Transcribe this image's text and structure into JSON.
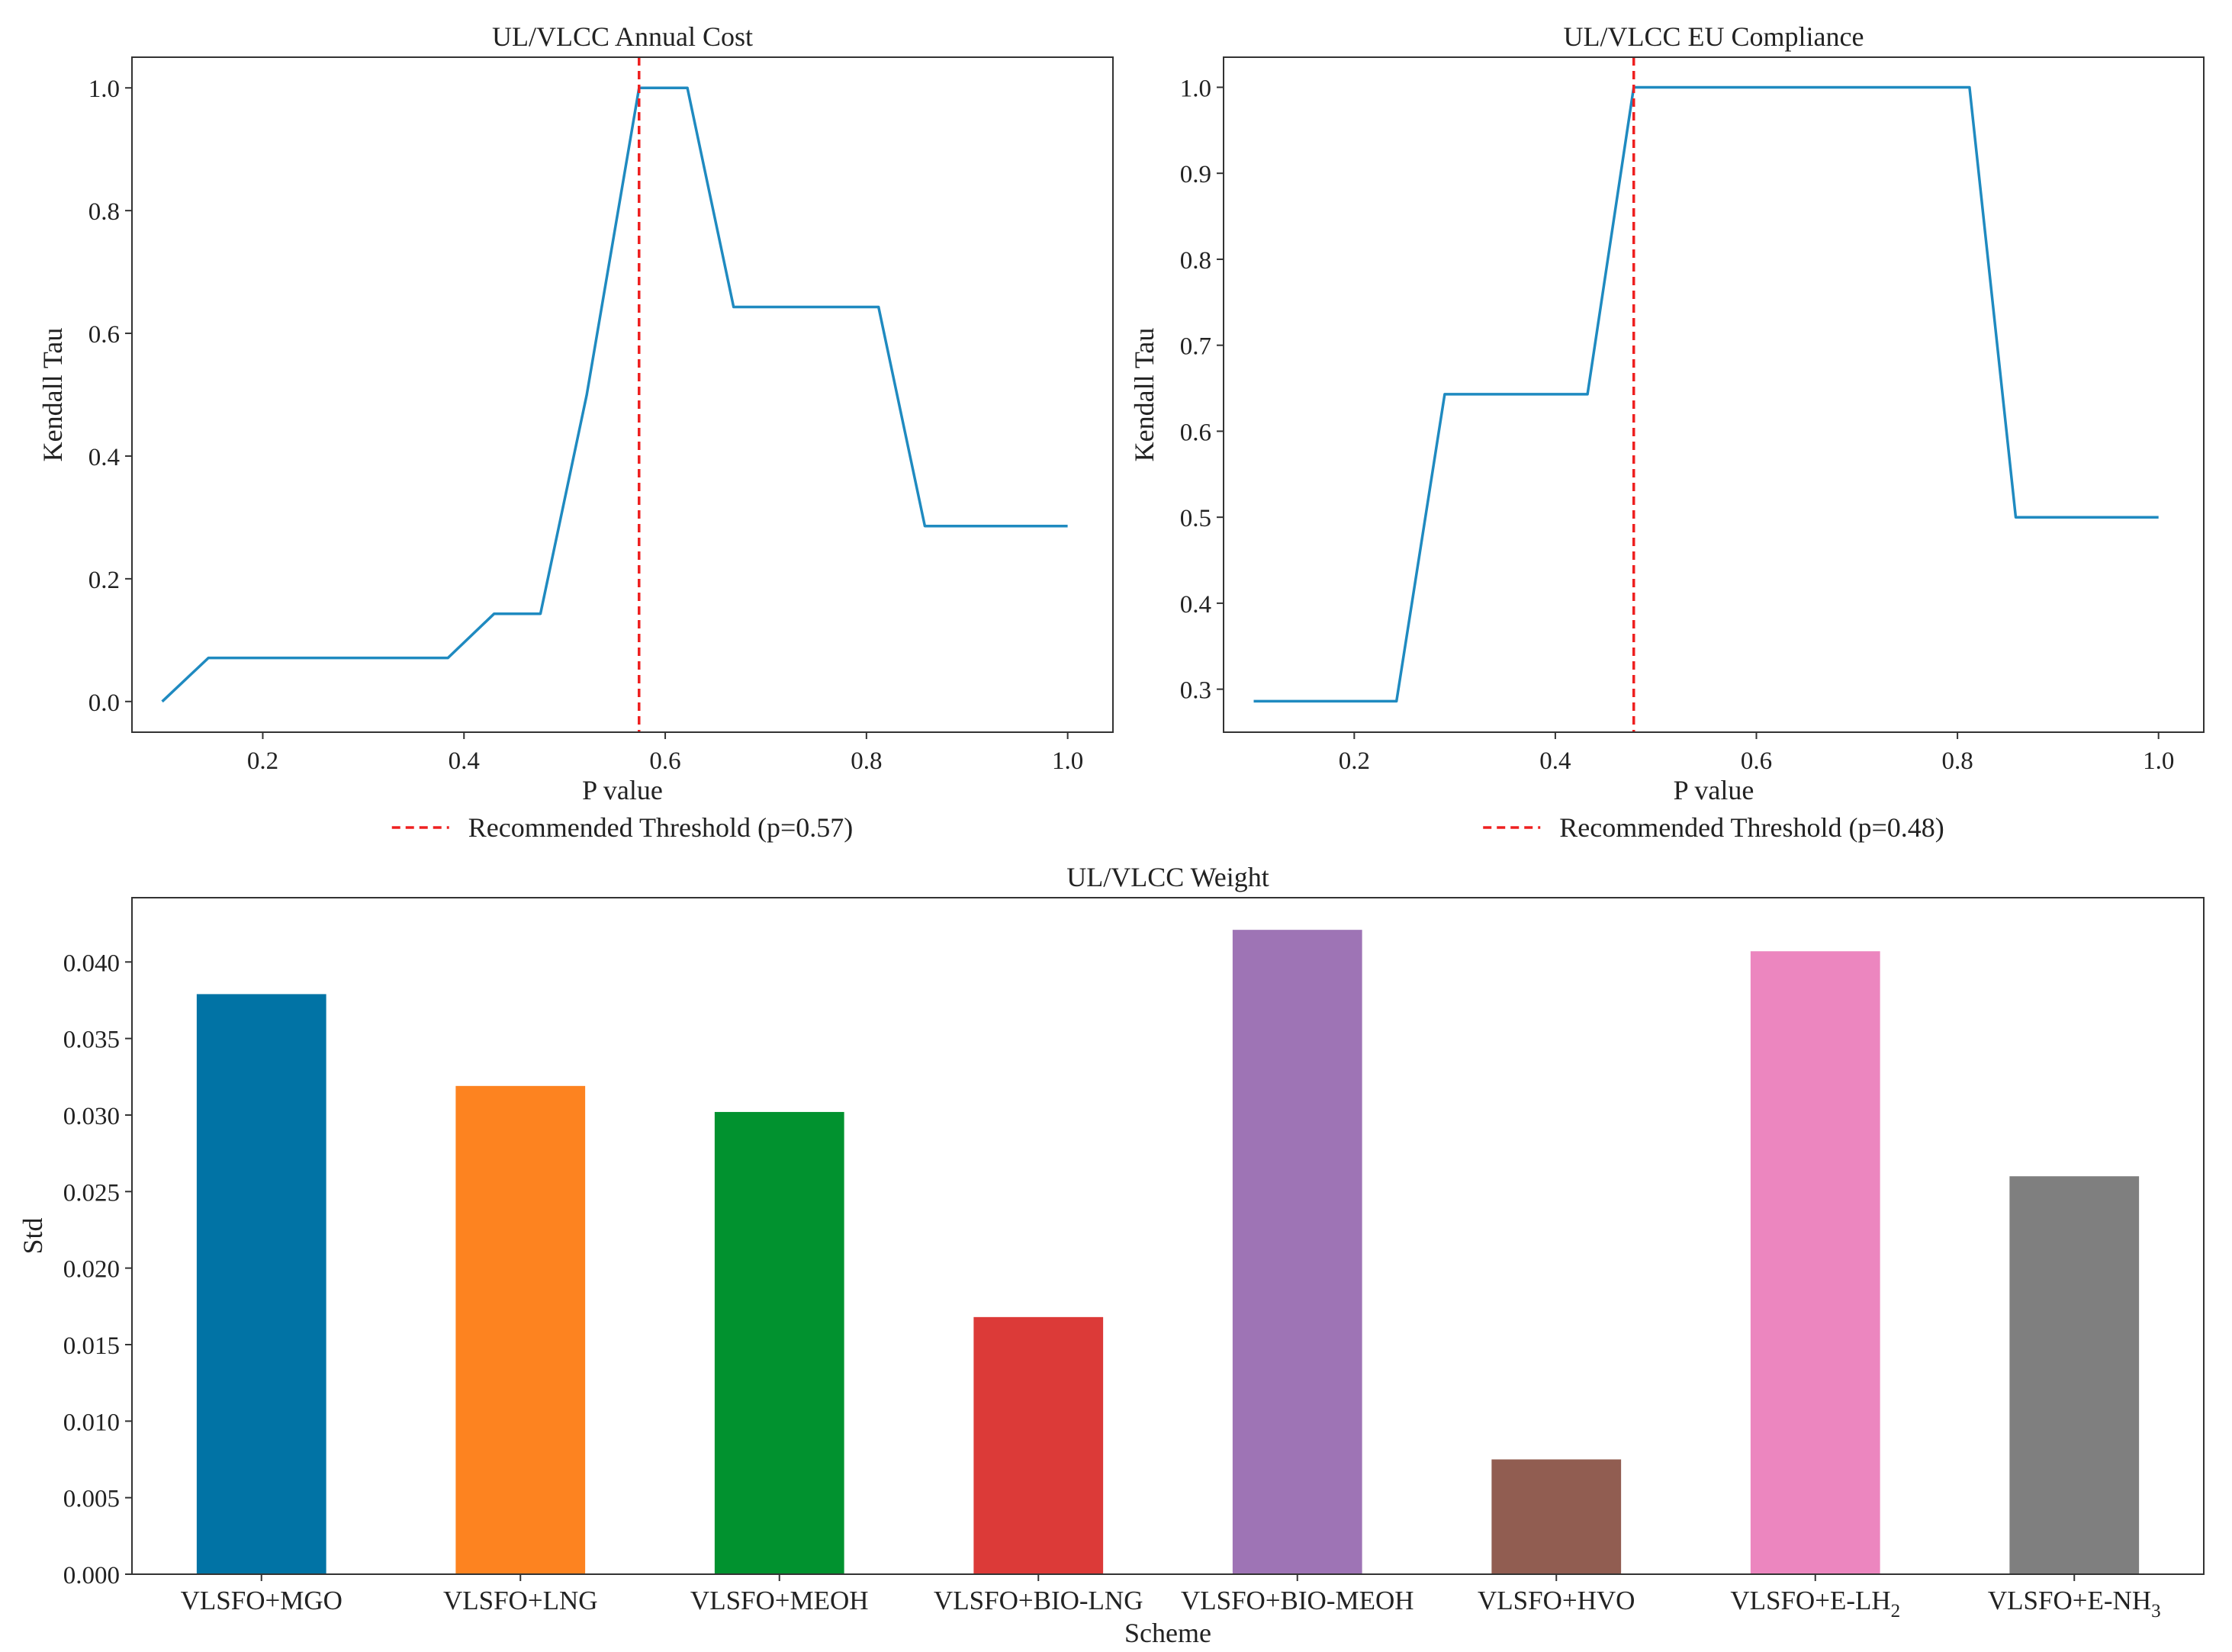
{
  "chart_data": [
    {
      "type": "line",
      "title": "UL/VLCC Annual Cost",
      "xlabel": "P value",
      "ylabel": "Kendall Tau",
      "xlim": [
        0.07,
        1.045
      ],
      "ylim": [
        -0.05,
        1.05
      ],
      "xticks": [
        "0.2",
        "0.4",
        "0.6",
        "0.8",
        "1.0"
      ],
      "yticks": [
        "0.0",
        "0.2",
        "0.4",
        "0.6",
        "0.8",
        "1.0"
      ],
      "grid": false,
      "legend": "bottom-center",
      "series": [
        {
          "color": "#1f8ac0",
          "x": [
            0.1,
            0.146,
            0.384,
            0.43,
            0.476,
            0.522,
            0.574,
            0.622,
            0.668,
            0.812,
            0.858,
            1.0
          ],
          "y": [
            0.0,
            0.071,
            0.071,
            0.143,
            0.143,
            0.5,
            1.0,
            1.0,
            0.643,
            0.643,
            0.286,
            0.286
          ]
        }
      ],
      "threshold": {
        "x": 0.574,
        "color": "#ee2020",
        "label": "Recommended Threshold (p=0.57)"
      }
    },
    {
      "type": "line",
      "title": "UL/VLCC EU Compliance",
      "xlabel": "P value",
      "ylabel": "Kendall Tau",
      "xlim": [
        0.07,
        1.045
      ],
      "ylim": [
        0.25,
        1.035
      ],
      "xticks": [
        "0.2",
        "0.4",
        "0.6",
        "0.8",
        "1.0"
      ],
      "yticks": [
        "0.3",
        "0.4",
        "0.5",
        "0.6",
        "0.7",
        "0.8",
        "0.9",
        "1.0"
      ],
      "grid": false,
      "legend": "bottom-center",
      "series": [
        {
          "color": "#1f8ac0",
          "x": [
            0.1,
            0.242,
            0.29,
            0.432,
            0.478,
            0.812,
            0.858,
            1.0
          ],
          "y": [
            0.286,
            0.286,
            0.643,
            0.643,
            1.0,
            1.0,
            0.5,
            0.5
          ]
        }
      ],
      "threshold": {
        "x": 0.478,
        "color": "#ee2020",
        "label": "Recommended Threshold (p=0.48)"
      }
    },
    {
      "type": "bar",
      "title": "UL/VLCC Weight",
      "xlabel": "Scheme",
      "ylabel": "Std",
      "ylim": [
        0,
        0.0442
      ],
      "yticks": [
        "0.000",
        "0.005",
        "0.010",
        "0.015",
        "0.020",
        "0.025",
        "0.030",
        "0.035",
        "0.040"
      ],
      "grid": false,
      "categories": [
        {
          "base": "VLSFO+MGO",
          "sub": ""
        },
        {
          "base": "VLSFO+LNG",
          "sub": ""
        },
        {
          "base": "VLSFO+MEOH",
          "sub": ""
        },
        {
          "base": "VLSFO+BIO-LNG",
          "sub": ""
        },
        {
          "base": "VLSFO+BIO-MEOH",
          "sub": ""
        },
        {
          "base": "VLSFO+HVO",
          "sub": ""
        },
        {
          "base": "VLSFO+E-LH",
          "sub": "2"
        },
        {
          "base": "VLSFO+E-NH",
          "sub": "3"
        }
      ],
      "values": [
        0.0379,
        0.0319,
        0.0302,
        0.0168,
        0.0421,
        0.0075,
        0.0407,
        0.026
      ],
      "colors": [
        "#0173a5",
        "#fd8320",
        "#01922f",
        "#dc3a38",
        "#9e74b5",
        "#915d51",
        "#ec86bf",
        "#7f7f7f"
      ]
    }
  ]
}
